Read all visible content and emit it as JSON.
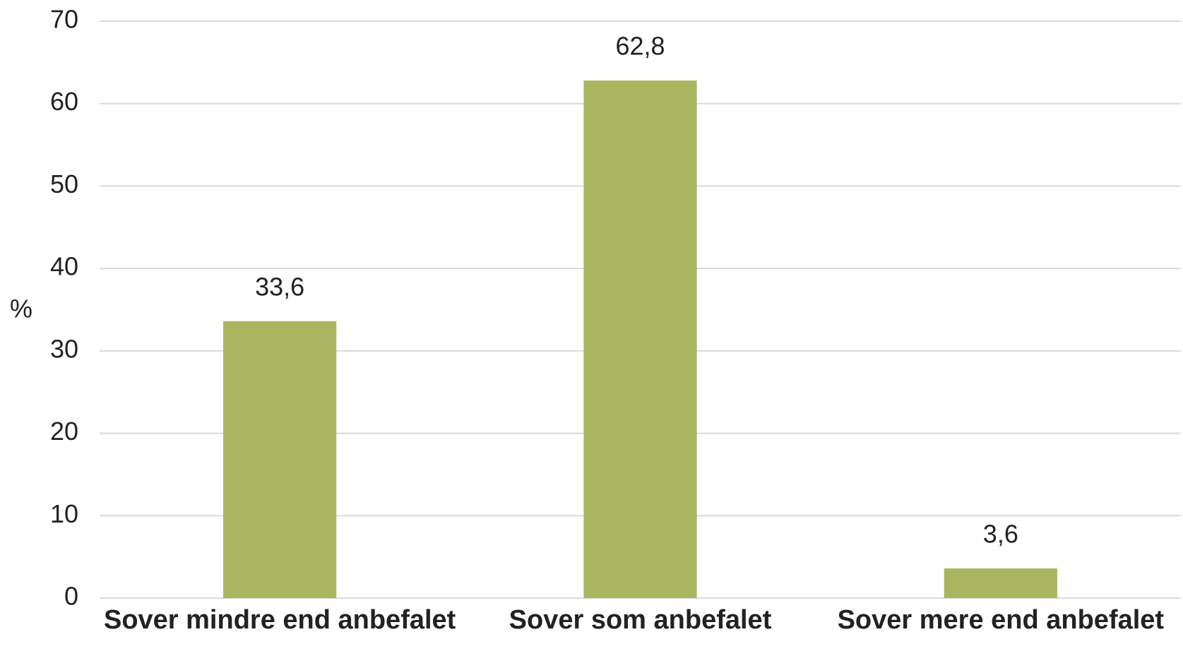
{
  "chart_data": {
    "type": "bar",
    "y_label": "%",
    "categories": [
      "Sover mindre end anbefalet",
      "Sover som anbefalet",
      "Sover mere end anbefalet"
    ],
    "values": [
      33.6,
      62.8,
      3.6
    ],
    "value_labels": [
      "33,6",
      "62,8",
      "3,6"
    ],
    "color": "#a9b65f",
    "ylim": [
      0,
      70
    ],
    "yticks": [
      0,
      10,
      20,
      30,
      40,
      50,
      60,
      70
    ],
    "grid": true
  }
}
